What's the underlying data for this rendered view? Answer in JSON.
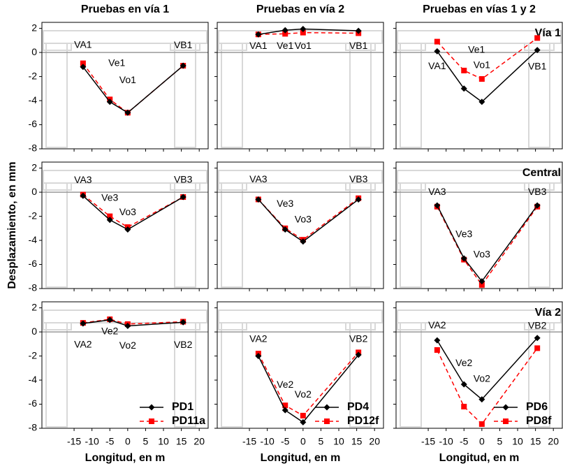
{
  "chart_data": [
    {
      "type": "line",
      "title": "Pruebas en vía 1",
      "x": [
        -12.5,
        -5,
        0,
        15.5
      ],
      "series": [
        {
          "color": "#000000",
          "values": [
            -1.2,
            -4.1,
            -5.0,
            -1.1
          ]
        },
        {
          "color": "#ff0000",
          "values": [
            -0.9,
            -3.9,
            -5.0,
            -1.1
          ]
        }
      ],
      "annotations": [
        "VA1",
        "Ve1",
        "Vo1",
        "VB1"
      ],
      "xlim": [
        -24,
        22.5
      ],
      "ylim": [
        -8,
        2.5
      ],
      "xticks": [
        -15,
        -10,
        -5,
        0,
        5,
        10,
        15,
        20
      ],
      "yticks": [
        2,
        0,
        -2,
        -4,
        -6,
        -8
      ]
    },
    {
      "type": "line",
      "title": "Pruebas en vía 2",
      "x": [
        -12.5,
        -5,
        0,
        15.5
      ],
      "series": [
        {
          "color": "#000000",
          "values": [
            1.5,
            1.85,
            1.95,
            1.8
          ]
        },
        {
          "color": "#ff0000",
          "values": [
            1.5,
            1.55,
            1.65,
            1.6
          ]
        }
      ],
      "annotations": [
        "VA1",
        "Ve1",
        "Vo1",
        "VB1"
      ],
      "xlim": [
        -24,
        22.5
      ],
      "ylim": [
        -8,
        2.5
      ],
      "xticks": [
        -15,
        -10,
        -5,
        0,
        5,
        10,
        15,
        20
      ],
      "yticks": [
        2,
        0,
        -2,
        -4,
        -6,
        -8
      ]
    },
    {
      "type": "line",
      "title": "Pruebas en vías 1 y 2",
      "panel_label": "Vía 1",
      "x": [
        -12.5,
        -5,
        0,
        15.5
      ],
      "series": [
        {
          "color": "#000000",
          "values": [
            0.1,
            -3.0,
            -4.1,
            0.2
          ]
        },
        {
          "color": "#ff0000",
          "values": [
            0.9,
            -1.5,
            -2.2,
            1.2
          ]
        }
      ],
      "annotations": [
        "VA1",
        "Ve1",
        "Vo1",
        "VB1"
      ],
      "xlim": [
        -24,
        22.5
      ],
      "ylim": [
        -8,
        2.5
      ],
      "xticks": [
        -15,
        -10,
        -5,
        0,
        5,
        10,
        15,
        20
      ],
      "yticks": [
        2,
        0,
        -2,
        -4,
        -6,
        -8
      ]
    },
    {
      "type": "line",
      "ylabel": "Desplazamiento, en mm",
      "x": [
        -12.5,
        -5,
        0,
        15.5
      ],
      "series": [
        {
          "color": "#000000",
          "values": [
            -0.3,
            -2.3,
            -3.1,
            -0.4
          ]
        },
        {
          "color": "#ff0000",
          "values": [
            -0.2,
            -2.0,
            -2.9,
            -0.4
          ]
        }
      ],
      "annotations": [
        "VA3",
        "Ve3",
        "Vo3",
        "VB3"
      ],
      "xlim": [
        -24,
        22.5
      ],
      "ylim": [
        -8,
        2.5
      ],
      "xticks": [
        -15,
        -10,
        -5,
        0,
        5,
        10,
        15,
        20
      ],
      "yticks": [
        2,
        0,
        -2,
        -4,
        -6,
        -8
      ]
    },
    {
      "type": "line",
      "x": [
        -12.5,
        -5,
        0,
        15.5
      ],
      "series": [
        {
          "color": "#000000",
          "values": [
            -0.6,
            -3.1,
            -4.1,
            -0.6
          ]
        },
        {
          "color": "#ff0000",
          "values": [
            -0.6,
            -3.0,
            -3.95,
            -0.5
          ]
        }
      ],
      "annotations": [
        "VA3",
        "Ve3",
        "Vo3",
        "VB3"
      ],
      "xlim": [
        -24,
        22.5
      ],
      "ylim": [
        -8,
        2.5
      ],
      "xticks": [
        -15,
        -10,
        -5,
        0,
        5,
        10,
        15,
        20
      ],
      "yticks": [
        2,
        0,
        -2,
        -4,
        -6,
        -8
      ]
    },
    {
      "type": "line",
      "panel_label": "Central",
      "x": [
        -12.5,
        -5,
        0,
        15.5
      ],
      "series": [
        {
          "color": "#000000",
          "values": [
            -1.1,
            -5.5,
            -7.4,
            -1.1
          ]
        },
        {
          "color": "#ff0000",
          "values": [
            -1.2,
            -5.6,
            -7.7,
            -1.2
          ]
        }
      ],
      "annotations": [
        "VA3",
        "Ve3",
        "Vo3",
        "VB3"
      ],
      "xlim": [
        -24,
        22.5
      ],
      "ylim": [
        -8,
        2.5
      ],
      "xticks": [
        -15,
        -10,
        -5,
        0,
        5,
        10,
        15,
        20
      ],
      "yticks": [
        2,
        0,
        -2,
        -4,
        -6,
        -8
      ]
    },
    {
      "type": "line",
      "xlabel": "Longitud, en m",
      "legend": "lower right",
      "x": [
        -12.5,
        -5,
        0,
        15.5
      ],
      "series": [
        {
          "name": "PD1",
          "color": "#000000",
          "values": [
            0.7,
            1.0,
            0.5,
            0.8
          ]
        },
        {
          "name": "PD11a",
          "color": "#ff0000",
          "values": [
            0.75,
            1.05,
            0.65,
            0.85
          ]
        }
      ],
      "annotations": [
        "VA2",
        "Ve2",
        "Vo2",
        "VB2"
      ],
      "xlim": [
        -24,
        22.5
      ],
      "ylim": [
        -8,
        2.5
      ],
      "xticks": [
        -15,
        -10,
        -5,
        0,
        5,
        10,
        15,
        20
      ],
      "yticks": [
        2,
        0,
        -2,
        -4,
        -6,
        -8
      ]
    },
    {
      "type": "line",
      "xlabel": "Longitud, en m",
      "legend": "lower right",
      "x": [
        -12.5,
        -5,
        0,
        15.5
      ],
      "series": [
        {
          "name": "PD4",
          "color": "#000000",
          "values": [
            -2.0,
            -6.5,
            -7.5,
            -1.9
          ]
        },
        {
          "name": "PD12f",
          "color": "#ff0000",
          "values": [
            -1.8,
            -6.1,
            -6.95,
            -1.7
          ]
        }
      ],
      "annotations": [
        "VA2",
        "Ve2",
        "Vo2",
        "VB2"
      ],
      "xlim": [
        -24,
        22.5
      ],
      "ylim": [
        -8,
        2.5
      ],
      "xticks": [
        -15,
        -10,
        -5,
        0,
        5,
        10,
        15,
        20
      ],
      "yticks": [
        2,
        0,
        -2,
        -4,
        -6,
        -8
      ]
    },
    {
      "type": "line",
      "xlabel": "Longitud, en m",
      "legend": "lower right",
      "panel_label": "Vía 2",
      "x": [
        -12.5,
        -5,
        0,
        15.5
      ],
      "series": [
        {
          "name": "PD6",
          "color": "#000000",
          "values": [
            -0.7,
            -4.35,
            -5.6,
            -0.5
          ]
        },
        {
          "name": "PD8f",
          "color": "#ff0000",
          "values": [
            -1.5,
            -6.2,
            -7.65,
            -1.35
          ]
        }
      ],
      "annotations": [
        "VA2",
        "Ve2",
        "Vo2",
        "VB2"
      ],
      "xlim": [
        -24,
        22.5
      ],
      "ylim": [
        -8,
        2.5
      ],
      "xticks": [
        -15,
        -10,
        -5,
        0,
        5,
        10,
        15,
        20
      ],
      "yticks": [
        2,
        0,
        -2,
        -4,
        -6,
        -8
      ]
    }
  ]
}
